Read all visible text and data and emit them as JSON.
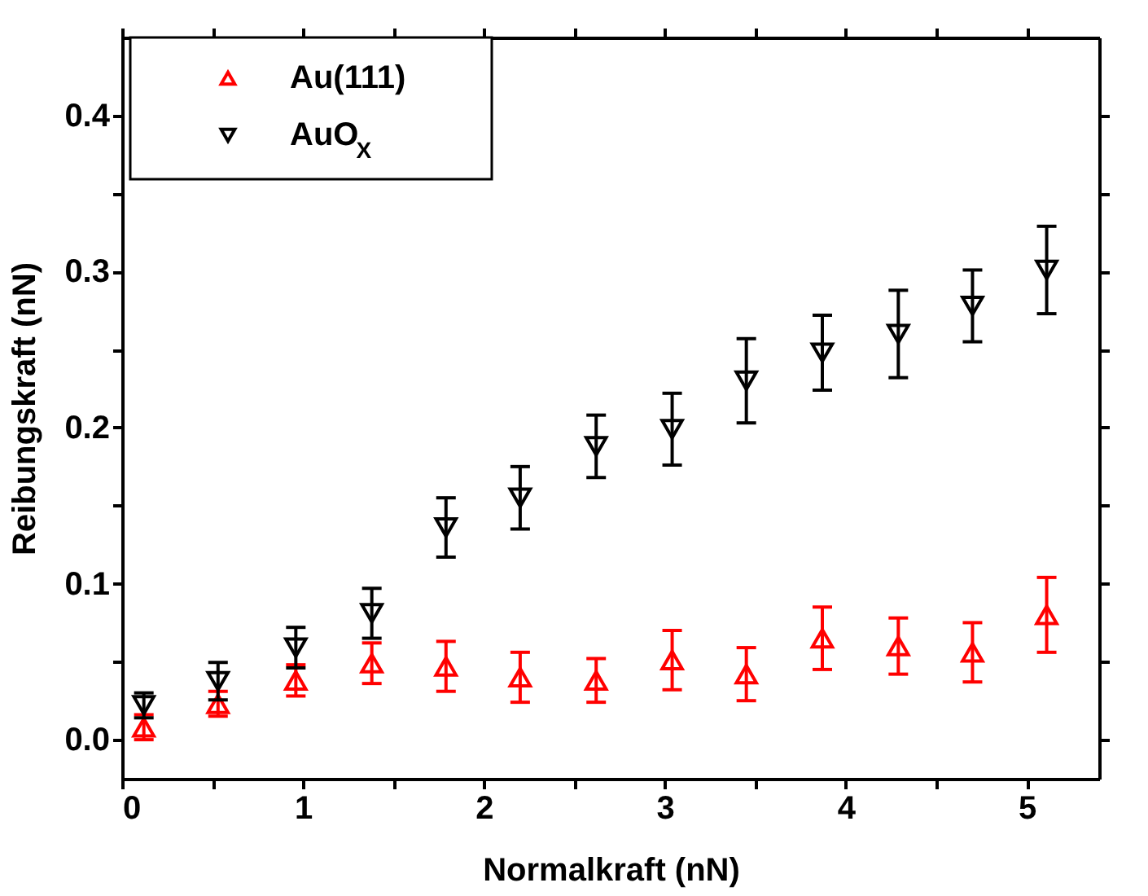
{
  "chart_data": {
    "type": "scatter",
    "xlabel": "Normalkraft (nN)",
    "ylabel": "Reibungskraft (nN)",
    "x": [
      0.12,
      0.53,
      0.96,
      1.38,
      1.79,
      2.2,
      2.62,
      3.04,
      3.45,
      3.87,
      4.29,
      4.7,
      5.11
    ],
    "series": [
      {
        "name": "Au(111)",
        "color": "#ff0000",
        "marker": "triangle",
        "values": [
          0.008,
          0.023,
          0.038,
          0.049,
          0.047,
          0.04,
          0.038,
          0.051,
          0.042,
          0.065,
          0.06,
          0.056,
          0.08
        ],
        "errors": [
          0.008,
          0.008,
          0.01,
          0.013,
          0.016,
          0.016,
          0.014,
          0.019,
          0.017,
          0.02,
          0.018,
          0.019,
          0.024
        ]
      },
      {
        "name": "AuO$_{X}$",
        "color": "#000000",
        "marker": "triangle-down",
        "values": [
          0.022,
          0.0375,
          0.059,
          0.081,
          0.136,
          0.155,
          0.188,
          0.199,
          0.23,
          0.248,
          0.26,
          0.278,
          0.301
        ],
        "errors": [
          0.008,
          0.012,
          0.013,
          0.016,
          0.019,
          0.02,
          0.02,
          0.023,
          0.027,
          0.024,
          0.028,
          0.023,
          0.028
        ]
      }
    ],
    "xlim": [
      0,
      5.4
    ],
    "xticks": [
      0,
      {
        "value": 0.5,
        "label": null
      },
      1,
      {
        "value": 1.5,
        "label": null
      },
      2,
      {
        "value": 2.5,
        "label": null
      },
      3,
      {
        "value": 3.5,
        "label": null
      },
      4,
      {
        "value": 4.5,
        "label": null
      },
      5
    ],
    "ylim": [
      -0.025,
      0.45
    ],
    "yticks": [
      {
        "value": 0,
        "label": "0.0"
      },
      {
        "value": 0.05,
        "label": null
      },
      0.1,
      {
        "value": 0.15,
        "label": null
      },
      0.2,
      {
        "value": 0.25,
        "label": null
      },
      0.3,
      {
        "value": 0.35,
        "label": null
      },
      0.4
    ],
    "legend": "top left",
    "grid": false
  }
}
